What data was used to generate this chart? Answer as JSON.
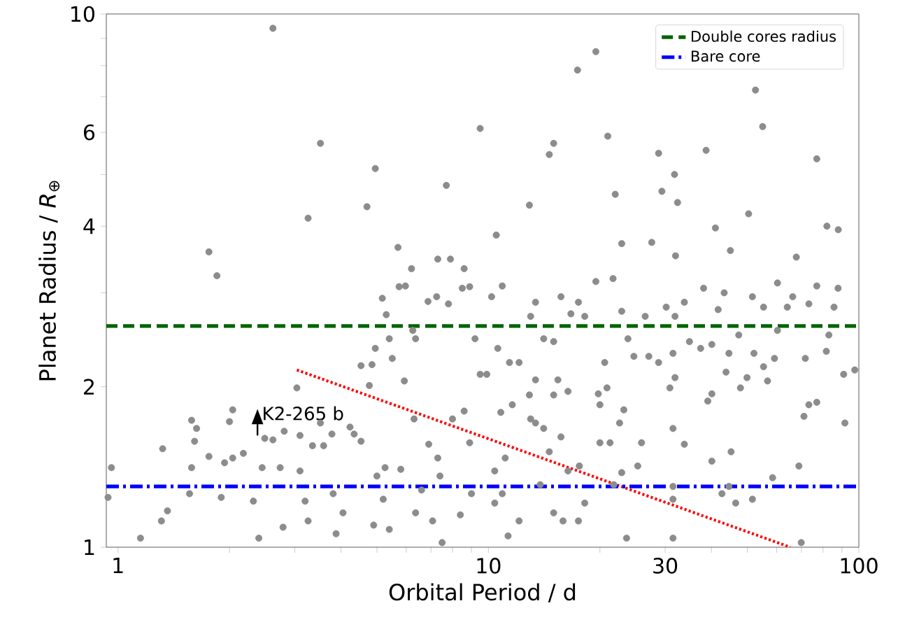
{
  "chart_data": {
    "type": "scatter",
    "xlabel": "Orbital Period / d",
    "ylabel": "Planet Radius / *R*$_{⊕}$",
    "log": "xy",
    "grid": false,
    "legend": "top right",
    "marker": "circle",
    "xlim": [
      0.93,
      100
    ],
    "ylim": [
      1,
      10
    ],
    "xticks": [
      1,
      {
        "value": 2,
        "label": null
      },
      {
        "value": 3,
        "label": null
      },
      {
        "value": 4,
        "label": null
      },
      {
        "value": 5,
        "label": null
      },
      {
        "value": 6,
        "label": null
      },
      {
        "value": 7,
        "label": null
      },
      {
        "value": 8,
        "label": null
      },
      {
        "value": 9,
        "label": null
      },
      10,
      {
        "value": 20,
        "label": null
      },
      30,
      {
        "value": 40,
        "label": null
      },
      {
        "value": 50,
        "label": null
      },
      {
        "value": 60,
        "label": null
      },
      {
        "value": 70,
        "label": null
      },
      {
        "value": 80,
        "label": null
      },
      {
        "value": 90,
        "label": null
      },
      100
    ],
    "yticks": [
      1,
      2,
      {
        "value": 3,
        "label": null
      },
      4,
      {
        "value": 5,
        "label": null
      },
      6,
      {
        "value": 7,
        "label": null
      },
      {
        "value": 8,
        "label": null
      },
      {
        "value": 9,
        "label": null
      },
      10
    ],
    "series": [
      {
        "color": "#8c8c8c",
        "x": [
          2.62,
          3.52,
          4.95,
          7.7,
          3.26,
          4.7,
          9.5,
          1.76,
          5.7,
          7.3,
          7.9,
          8.6,
          6.2,
          1.85,
          19.5,
          17.4,
          39,
          52.6,
          55,
          21,
          15,
          14.6,
          28.8,
          38.7,
          77,
          31.8,
          29.4,
          32.4,
          22,
          12.9,
          10.5,
          50.4,
          41,
          82,
          88,
          22.9,
          27.6,
          45,
          67.8,
          32,
          0.96,
          0.94,
          1.15,
          1.36,
          1.31,
          1.32,
          1.58,
          1.63,
          1.61,
          1.58,
          1.56,
          1.76,
          1.9,
          1.94,
          2.04,
          2.0,
          2.04,
          2.18,
          2.32,
          2.45,
          2.49,
          2.62,
          2.74,
          2.81,
          2.79,
          2.4,
          3.04,
          3.1,
          3.1,
          3.2,
          3.26,
          3.35,
          3.59,
          3.78,
          3.52,
          3.88,
          3.81,
          4.05,
          4.23,
          4.34,
          4.53,
          4.85,
          4.53,
          4.77,
          4.95,
          5.17,
          5.3,
          5.4,
          5.5,
          5.26,
          5.0,
          5.2,
          4.9,
          5.4,
          5.74,
          5.97,
          5.8,
          5.93,
          6.25,
          6.36,
          6.3,
          6.87,
          7.25,
          7.8,
          6.9,
          7.3,
          7.4,
          6.6,
          6.36,
          7.07,
          7.5,
          8.0,
          8.6,
          8.9,
          8.5,
          8.9,
          9.2,
          9.5,
          9.0,
          8.4,
          10.2,
          10.9,
          9.9,
          10.6,
          11.4,
          12.1,
          10.8,
          11.6,
          11.1,
          10.4,
          10.4,
          10.9,
          11.3,
          12.1,
          13.0,
          13.4,
          12.9,
          13.4,
          13.0,
          13.4,
          14.1,
          15.0,
          15.7,
          16.7,
          15.4,
          16.4,
          15.0,
          14.1,
          15.7,
          14.6,
          16.4,
          13.8,
          15.0,
          15.9,
          17.5,
          18.2,
          17.6,
          17.5,
          18.2,
          19.5,
          21.7,
          19.8,
          20.0,
          20.9,
          20.0,
          21.3,
          20.6,
          22.9,
          23.8,
          24.7,
          23.2,
          22.6,
          22.9,
          21.8,
          23.6,
          25.3,
          25.9,
          26.5,
          27.1,
          28.8,
          30.2,
          31.9,
          31.5,
          31.9,
          30.9,
          31.5,
          33.8,
          31.5,
          31.5,
          31.5,
          33.8,
          34.9,
          37.4,
          38.1,
          41.7,
          43.3,
          40.1,
          39.1,
          40.1,
          43.8,
          44.6,
          45.2,
          40.1,
          44.6,
          42.7,
          47.4,
          51.6,
          47.9,
          49.9,
          52.1,
          55.3,
          56.7,
          59.2,
          60.3,
          55.3,
          60.3,
          51.6,
          46.5,
          58.5,
          69.9,
          68.9,
          64.1,
          66.3,
          71.7,
          73.3,
          77.0,
          77.0,
          73.3,
          71.1,
          81.7,
          85.7,
          87.9,
          91.0,
          91.7,
          97.5,
          83.0
        ],
        "values": [
          9.4,
          5.72,
          5.13,
          4.77,
          4.14,
          4.35,
          6.1,
          3.58,
          3.65,
          3.47,
          3.47,
          3.33,
          3.33,
          3.23,
          8.5,
          7.85,
          null,
          7.2,
          6.15,
          5.9,
          5.72,
          5.45,
          5.48,
          5.55,
          5.35,
          5.0,
          4.65,
          4.43,
          4.59,
          4.38,
          3.85,
          4.22,
          3.97,
          4.0,
          3.94,
          3.71,
          3.73,
          3.6,
          3.5,
          3.52,
          1.41,
          1.24,
          1.04,
          1.17,
          1.12,
          1.53,
          1.73,
          1.67,
          1.58,
          1.41,
          1.26,
          1.48,
          1.24,
          1.44,
          1.47,
          1.72,
          1.81,
          1.5,
          1.22,
          1.41,
          1.6,
          1.59,
          1.41,
          1.65,
          1.09,
          1.04,
          1.99,
          1.62,
          1.39,
          1.22,
          1.12,
          1.55,
          1.55,
          1.63,
          1.71,
          1.06,
          1.26,
          1.16,
          1.68,
          1.63,
          2.19,
          2.2,
          1.58,
          2.01,
          2.36,
          2.93,
          2.73,
          2.46,
          2.26,
          1.41,
          1.36,
          1.23,
          1.1,
          1.08,
          3.08,
          3.09,
          1.4,
          2.05,
          2.55,
          2.46,
          1.74,
          2.89,
          2.95,
          2.86,
          1.56,
          1.47,
          1.36,
          1.28,
          1.16,
          1.12,
          1.02,
          1.74,
          1.8,
          1.57,
          3.06,
          3.08,
          2.46,
          2.11,
          1.26,
          1.15,
          2.95,
          3.09,
          2.11,
          2.36,
          2.22,
          2.22,
          1.79,
          1.85,
          1.47,
          1.39,
          1.21,
          1.26,
          1.05,
          1.12,
          1.74,
          1.71,
          1.93,
          2.06,
          2.71,
          2.88,
          2.46,
          2.43,
          2.95,
          2.74,
          2.06,
          1.96,
          1.93,
          1.67,
          1.61,
          1.51,
          1.39,
          1.31,
          1.16,
          1.12,
          1.12,
          1.21,
          1.42,
          2.88,
          2.71,
          3.15,
          3.19,
          1.94,
          1.85,
          1.99,
          1.57,
          1.57,
          2.22,
          2.77,
          2.46,
          2.28,
          1.81,
          1.71,
          1.38,
          1.31,
          1.04,
          1.42,
          1.57,
          2.71,
          2.28,
          2.22,
          2.82,
          2.71,
          2.31,
          2.08,
          1.99,
          1.67,
          1.56,
          1.3,
          1.23,
          1.04,
          2.88,
          2.43,
          2.36,
          3.06,
          2.79,
          3.0,
          2.4,
          1.88,
          1.94,
          2.13,
          2.31,
          1.51,
          1.45,
          1.3,
          1.26,
          2.5,
          2.95,
          1.99,
          2.08,
          2.31,
          2.18,
          2.05,
          2.26,
          3.13,
          2.82,
          2.55,
          1.23,
          1.21,
          1.35,
          1.02,
          1.42,
          2.82,
          2.95,
          2.26,
          2.86,
          3.09,
          1.87,
          1.85,
          1.76,
          2.33,
          2.82,
          3.06,
          2.11,
          1.71,
          2.15,
          2.5
        ]
      },
      {
        "type": "line",
        "color": "#ff0000",
        "line_style": "dotted",
        "marker": "none",
        "x": [
          3.04,
          65.3
        ],
        "values": [
          2.15,
          1.0
        ]
      }
    ],
    "ref_lines": [
      {
        "axis": "y",
        "value": 2.6,
        "label": "Double cores radius",
        "color": "#006400",
        "line_style": "dashed"
      },
      {
        "axis": "y",
        "value": 1.3,
        "label": "Bare core",
        "color": "#0000ff",
        "line_style": "dashdot"
      }
    ],
    "annotations": [
      {
        "text": "K2-265 b",
        "x": 2.38,
        "y": 1.62
      }
    ]
  }
}
